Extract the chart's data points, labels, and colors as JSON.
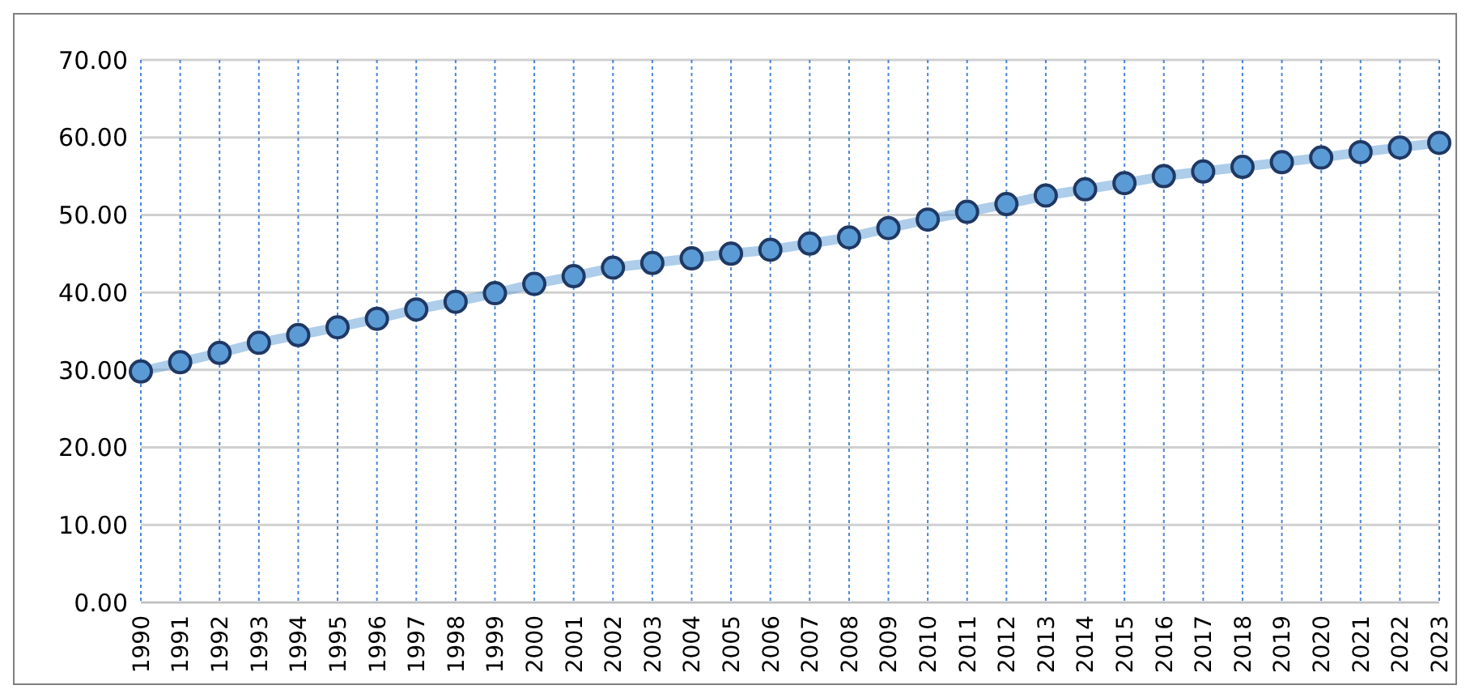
{
  "chart_data": {
    "type": "line",
    "categories": [
      "1990",
      "1991",
      "1992",
      "1993",
      "1994",
      "1995",
      "1996",
      "1997",
      "1998",
      "1999",
      "2000",
      "2001",
      "2002",
      "2003",
      "2004",
      "2005",
      "2006",
      "2007",
      "2008",
      "2009",
      "2010",
      "2011",
      "2012",
      "2013",
      "2014",
      "2015",
      "2016",
      "2017",
      "2018",
      "2019",
      "2020",
      "2021",
      "2022",
      "2023"
    ],
    "series": [
      {
        "color": "#5b9bd5",
        "values": [
          29.8,
          31.0,
          32.2,
          33.5,
          34.5,
          35.5,
          36.6,
          37.8,
          38.8,
          39.9,
          41.1,
          42.1,
          43.2,
          43.8,
          44.4,
          45.0,
          45.5,
          46.3,
          47.1,
          48.3,
          49.4,
          50.4,
          51.4,
          52.5,
          53.3,
          54.1,
          55.0,
          55.6,
          56.2,
          56.8,
          57.4,
          58.1,
          58.7,
          59.3
        ]
      }
    ],
    "ylim": [
      0,
      70
    ],
    "yticks": [
      {
        "value": 0,
        "label": "0.00"
      },
      {
        "value": 10,
        "label": "10.00"
      },
      {
        "value": 20,
        "label": "20.00"
      },
      {
        "value": 30,
        "label": "30.00"
      },
      {
        "value": 40,
        "label": "40.00"
      },
      {
        "value": 50,
        "label": "50.00"
      },
      {
        "value": 60,
        "label": "60.00"
      },
      {
        "value": 70,
        "label": "70.00"
      }
    ],
    "grid": true,
    "marker": "circle",
    "line_style": "solid",
    "legend": false
  }
}
